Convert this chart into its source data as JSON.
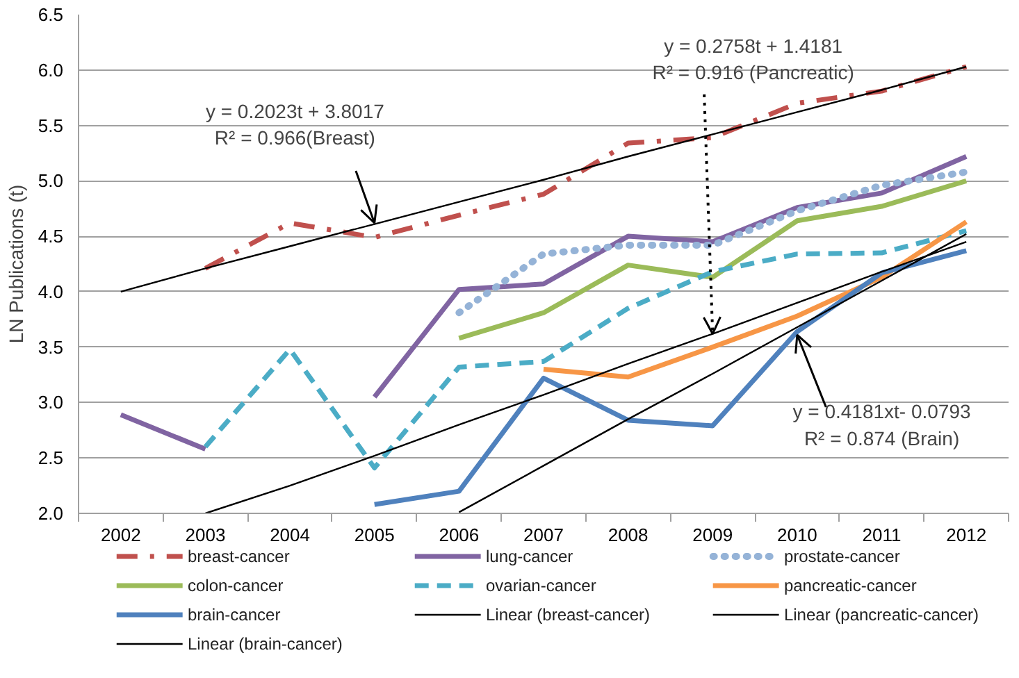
{
  "chart_data": {
    "type": "line",
    "ylabel": "LN Publications (t)",
    "categories": [
      "2002",
      "2003",
      "2004",
      "2005",
      "2006",
      "2007",
      "2008",
      "2009",
      "2010",
      "2011",
      "2012"
    ],
    "ylim": [
      2.0,
      6.5
    ],
    "yticks": [
      {
        "value": 2.0,
        "label": "2.0"
      },
      {
        "value": 2.5,
        "label": "2.5"
      },
      {
        "value": 3.0,
        "label": "3.0"
      },
      {
        "value": 3.5,
        "label": "3.5"
      },
      {
        "value": 4.0,
        "label": "4.0"
      },
      {
        "value": 4.5,
        "label": "4.5"
      },
      {
        "value": 5.0,
        "label": "5.0"
      },
      {
        "value": 5.5,
        "label": "5.5"
      },
      {
        "value": 6.0,
        "label": "6.0"
      },
      {
        "value": 6.5,
        "label": "6.5"
      }
    ],
    "grid": "y",
    "legend": "bottom",
    "marker": "none",
    "series": [
      {
        "name": "breast-cancer",
        "color": "#c0504d",
        "line_style": "dashdot",
        "values": [
          null,
          4.21,
          4.62,
          4.49,
          4.69,
          4.88,
          5.34,
          5.39,
          5.7,
          5.81,
          6.03
        ]
      },
      {
        "name": "lung-cancer",
        "color": "#8064a2",
        "line_style": "solid",
        "values": [
          2.89,
          2.58,
          null,
          3.05,
          4.02,
          4.07,
          4.5,
          4.45,
          4.76,
          4.89,
          5.22
        ]
      },
      {
        "name": "prostate-cancer",
        "color": "#95b3d7",
        "line_style": "dotted",
        "values": [
          null,
          null,
          null,
          null,
          3.81,
          4.34,
          4.42,
          4.42,
          4.73,
          4.96,
          5.08
        ]
      },
      {
        "name": "colon-cancer",
        "color": "#9bbb59",
        "line_style": "solid",
        "values": [
          null,
          null,
          null,
          null,
          3.58,
          3.81,
          4.24,
          4.13,
          4.64,
          4.77,
          5.0
        ]
      },
      {
        "name": "ovarian-cancer",
        "color": "#4bacc6",
        "line_style": "dashed",
        "values": [
          null,
          2.6,
          3.48,
          2.41,
          3.32,
          3.37,
          3.85,
          4.18,
          4.34,
          4.35,
          4.55
        ]
      },
      {
        "name": "pancreatic-cancer",
        "color": "#f79646",
        "line_style": "solid",
        "values": [
          null,
          null,
          null,
          null,
          null,
          3.3,
          3.23,
          3.5,
          3.78,
          4.13,
          4.63
        ]
      },
      {
        "name": "brain-cancer",
        "color": "#4f81bd",
        "line_style": "solid",
        "values": [
          null,
          null,
          null,
          2.08,
          2.2,
          3.22,
          2.84,
          2.79,
          3.64,
          4.17,
          4.37
        ]
      },
      {
        "name": "Linear (breast-cancer)",
        "color": "#000000",
        "line_style": "solid",
        "values": [
          4.0,
          4.21,
          4.41,
          4.61,
          4.81,
          5.01,
          5.22,
          5.42,
          5.62,
          5.82,
          6.03
        ]
      },
      {
        "name": "Linear (pancreatic-cancer)",
        "color": "#000000",
        "line_style": "solid",
        "values": [
          null,
          2.0,
          2.25,
          2.52,
          2.8,
          3.07,
          3.35,
          3.62,
          3.9,
          4.18,
          4.45
        ]
      },
      {
        "name": "Linear (brain-cancer)",
        "color": "#000000",
        "line_style": "solid",
        "values": [
          null,
          null,
          null,
          null,
          2.01,
          2.43,
          2.85,
          3.26,
          3.68,
          4.1,
          4.52
        ]
      }
    ],
    "annotations": [
      {
        "text": "y = 0.2023t + 3.8017\nR² = 0.966(Breast)",
        "x": "2005",
        "y": 4.62
      },
      {
        "text": "y = 0.2758t + 1.4181\nR² = 0.916 (Pancreatic)",
        "x": "2009",
        "y": 3.62
      },
      {
        "text": "y = 0.4181xt- 0.0793\nR² = 0.874 (Brain)",
        "x": "2010",
        "y": 3.61
      }
    ]
  }
}
